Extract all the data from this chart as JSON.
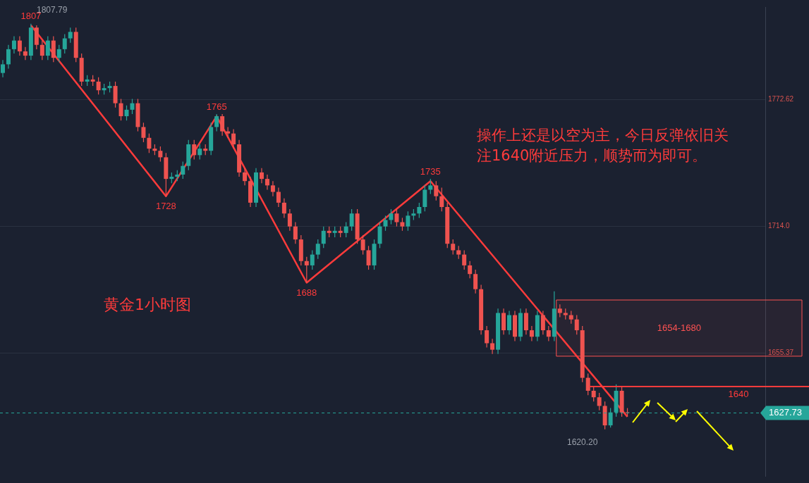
{
  "chart_data": {
    "type": "candlestick",
    "categories": [
      null,
      null,
      null,
      null,
      null,
      null,
      null,
      null,
      null,
      null,
      null,
      null,
      null,
      null,
      null,
      null,
      null,
      null,
      null,
      null,
      null,
      null,
      null,
      null,
      null,
      null,
      null,
      null,
      null,
      null,
      null,
      null,
      null,
      null,
      null,
      null,
      null,
      null,
      null,
      null,
      null,
      null,
      null,
      null,
      null,
      null,
      null,
      null,
      null,
      null,
      null,
      null,
      null,
      null,
      null,
      null,
      null,
      null,
      null,
      null,
      null,
      null,
      null,
      null,
      null,
      null,
      null,
      null,
      null,
      null,
      null,
      null,
      null,
      null,
      null,
      null,
      null,
      null,
      null,
      null,
      null,
      null,
      null,
      null,
      null,
      null,
      null,
      null,
      null,
      null,
      null,
      null,
      null,
      null,
      null,
      null,
      null,
      null,
      null,
      null,
      null,
      null,
      null,
      null,
      null,
      null,
      null,
      null,
      null,
      null,
      null,
      null,
      null,
      null,
      null,
      null,
      null,
      null,
      null,
      null,
      null,
      null,
      null,
      null,
      null,
      null,
      null,
      null,
      null,
      null,
      null,
      null,
      null,
      null,
      null,
      null
    ],
    "ohlc": [
      [
        1785,
        1791,
        1783,
        1789
      ],
      [
        1789,
        1798,
        1787,
        1796
      ],
      [
        1796,
        1802,
        1794,
        1800
      ],
      [
        1800,
        1802,
        1793,
        1795
      ],
      [
        1795,
        1797,
        1791,
        1793
      ],
      [
        1793,
        1807.79,
        1791,
        1806
      ],
      [
        1806,
        1807,
        1796,
        1798
      ],
      [
        1798,
        1800,
        1791,
        1793
      ],
      [
        1793,
        1802,
        1791,
        1800
      ],
      [
        1800,
        1802,
        1790,
        1792
      ],
      [
        1792,
        1798,
        1790,
        1796
      ],
      [
        1796,
        1803,
        1794,
        1801
      ],
      [
        1801,
        1806,
        1799,
        1804
      ],
      [
        1804,
        1806,
        1790,
        1792
      ],
      [
        1792,
        1794,
        1779,
        1781
      ],
      [
        1781,
        1784,
        1779,
        1782
      ],
      [
        1782,
        1784,
        1779,
        1781
      ],
      [
        1781,
        1783,
        1775,
        1777
      ],
      [
        1777,
        1780,
        1775,
        1778
      ],
      [
        1778,
        1781,
        1776,
        1779
      ],
      [
        1779,
        1781,
        1769,
        1771
      ],
      [
        1771,
        1773,
        1763,
        1765
      ],
      [
        1765,
        1770,
        1763,
        1768
      ],
      [
        1768,
        1773,
        1766,
        1771
      ],
      [
        1771,
        1773,
        1758,
        1760
      ],
      [
        1760,
        1762,
        1753,
        1755
      ],
      [
        1755,
        1757,
        1748,
        1750
      ],
      [
        1750,
        1752,
        1747,
        1749
      ],
      [
        1749,
        1751,
        1744,
        1746
      ],
      [
        1746,
        1748,
        1728,
        1736
      ],
      [
        1736,
        1739,
        1734,
        1737
      ],
      [
        1737,
        1740,
        1735,
        1738
      ],
      [
        1738,
        1744,
        1736,
        1742
      ],
      [
        1742,
        1754,
        1740,
        1752
      ],
      [
        1752,
        1754,
        1745,
        1747
      ],
      [
        1747,
        1752,
        1745,
        1750
      ],
      [
        1750,
        1752,
        1747,
        1749
      ],
      [
        1749,
        1762,
        1747,
        1760
      ],
      [
        1760,
        1766,
        1758,
        1765
      ],
      [
        1765,
        1766,
        1756,
        1758
      ],
      [
        1758,
        1760,
        1755,
        1757
      ],
      [
        1757,
        1759,
        1750,
        1752
      ],
      [
        1752,
        1754,
        1737,
        1739
      ],
      [
        1739,
        1741,
        1733,
        1735
      ],
      [
        1735,
        1737,
        1723,
        1725
      ],
      [
        1725,
        1741,
        1723,
        1739
      ],
      [
        1739,
        1741,
        1734,
        1736
      ],
      [
        1736,
        1738,
        1731,
        1733
      ],
      [
        1733,
        1735,
        1728,
        1730
      ],
      [
        1730,
        1732,
        1723,
        1725
      ],
      [
        1725,
        1727,
        1718,
        1720
      ],
      [
        1720,
        1722,
        1712,
        1714
      ],
      [
        1714,
        1716,
        1706,
        1708
      ],
      [
        1708,
        1710,
        1696,
        1698
      ],
      [
        1698,
        1700,
        1688,
        1696
      ],
      [
        1696,
        1703,
        1694,
        1701
      ],
      [
        1701,
        1708,
        1699,
        1706
      ],
      [
        1706,
        1714,
        1704,
        1712
      ],
      [
        1712,
        1714,
        1709,
        1711
      ],
      [
        1711,
        1714,
        1709,
        1712
      ],
      [
        1712,
        1714,
        1709,
        1711
      ],
      [
        1711,
        1716,
        1709,
        1714
      ],
      [
        1714,
        1722,
        1712,
        1720
      ],
      [
        1720,
        1722,
        1706,
        1708
      ],
      [
        1708,
        1710,
        1701,
        1703
      ],
      [
        1703,
        1705,
        1694,
        1696
      ],
      [
        1696,
        1708,
        1694,
        1706
      ],
      [
        1706,
        1716,
        1704,
        1714
      ],
      [
        1714,
        1719,
        1712,
        1717
      ],
      [
        1717,
        1722,
        1715,
        1720
      ],
      [
        1720,
        1722,
        1714,
        1716
      ],
      [
        1716,
        1718,
        1712,
        1714
      ],
      [
        1714,
        1721,
        1712,
        1719
      ],
      [
        1719,
        1722,
        1717,
        1720
      ],
      [
        1720,
        1725,
        1718,
        1723
      ],
      [
        1723,
        1733,
        1721,
        1731
      ],
      [
        1731,
        1736,
        1729,
        1733
      ],
      [
        1733,
        1735,
        1726,
        1728
      ],
      [
        1728,
        1732,
        1721,
        1723
      ],
      [
        1723,
        1725,
        1704,
        1706
      ],
      [
        1706,
        1708,
        1701,
        1703
      ],
      [
        1703,
        1705,
        1699,
        1701
      ],
      [
        1701,
        1703,
        1694,
        1696
      ],
      [
        1696,
        1698,
        1690,
        1692
      ],
      [
        1692,
        1694,
        1683,
        1685
      ],
      [
        1685,
        1687,
        1664,
        1666
      ],
      [
        1666,
        1668,
        1658,
        1660
      ],
      [
        1660,
        1662,
        1655,
        1657
      ],
      [
        1657,
        1676,
        1655,
        1674
      ],
      [
        1674,
        1676,
        1664,
        1666
      ],
      [
        1666,
        1675,
        1664,
        1673
      ],
      [
        1673,
        1675,
        1661,
        1663
      ],
      [
        1663,
        1676,
        1661,
        1674
      ],
      [
        1674,
        1676,
        1664,
        1666
      ],
      [
        1666,
        1668,
        1661,
        1663
      ],
      [
        1663,
        1675,
        1661,
        1673
      ],
      [
        1673,
        1675,
        1664,
        1666
      ],
      [
        1666,
        1668,
        1661,
        1663
      ],
      [
        1663,
        1684,
        1661,
        1676
      ],
      [
        1676,
        1678,
        1672,
        1674
      ],
      [
        1674,
        1676,
        1671,
        1673
      ],
      [
        1673,
        1675,
        1669,
        1671
      ],
      [
        1671,
        1673,
        1664,
        1666
      ],
      [
        1666,
        1668,
        1642,
        1644
      ],
      [
        1644,
        1646,
        1636,
        1638
      ],
      [
        1638,
        1640,
        1633,
        1635
      ],
      [
        1635,
        1637,
        1629,
        1631
      ],
      [
        1631,
        1633,
        1620.2,
        1622
      ],
      [
        1622,
        1630,
        1621,
        1628
      ],
      [
        1628,
        1641,
        1626,
        1638
      ],
      [
        1638,
        1640,
        1626,
        1628
      ],
      [
        1628,
        1630,
        1626,
        1627.73
      ],
      null,
      null,
      null,
      null,
      null,
      null,
      null,
      null,
      null,
      null,
      null,
      null,
      null,
      null,
      null,
      null,
      null,
      null,
      null,
      null,
      null,
      null,
      null,
      null
    ],
    "colors": [
      "#26a69a",
      "#26a69a",
      "#26a69a",
      "#ef5350",
      "#ef5350",
      "#26a69a",
      "#ef5350",
      "#ef5350",
      "#26a69a",
      "#ef5350",
      "#26a69a",
      "#26a69a",
      "#26a69a",
      "#ef5350",
      "#ef5350",
      "#26a69a",
      "#ef5350",
      "#ef5350",
      "#26a69a",
      "#26a69a",
      "#ef5350",
      "#ef5350",
      "#26a69a",
      "#26a69a",
      "#ef5350",
      "#ef5350",
      "#ef5350",
      "#ef5350",
      "#ef5350",
      "#ef5350",
      "#26a69a",
      "#26a69a",
      "#26a69a",
      "#26a69a",
      "#ef5350",
      "#26a69a",
      "#ef5350",
      "#26a69a",
      "#26a69a",
      "#ef5350",
      "#ef5350",
      "#ef5350",
      "#ef5350",
      "#ef5350",
      "#ef5350",
      "#26a69a",
      "#ef5350",
      "#ef5350",
      "#ef5350",
      "#ef5350",
      "#ef5350",
      "#ef5350",
      "#ef5350",
      "#ef5350",
      "#ef5350",
      "#26a69a",
      "#26a69a",
      "#26a69a",
      "#ef5350",
      "#26a69a",
      "#ef5350",
      "#26a69a",
      "#26a69a",
      "#ef5350",
      "#ef5350",
      "#ef5350",
      "#26a69a",
      "#26a69a",
      "#26a69a",
      "#26a69a",
      "#ef5350",
      "#ef5350",
      "#26a69a",
      "#26a69a",
      "#26a69a",
      "#26a69a",
      "#26a69a",
      "#ef5350",
      "#ef5350",
      "#ef5350",
      "#ef5350",
      "#ef5350",
      "#ef5350",
      "#ef5350",
      "#ef5350",
      "#ef5350",
      "#ef5350",
      "#ef5350",
      "#26a69a",
      "#ef5350",
      "#26a69a",
      "#ef5350",
      "#26a69a",
      "#ef5350",
      "#ef5350",
      "#26a69a",
      "#ef5350",
      "#ef5350",
      "#26a69a",
      "#ef5350",
      "#ef5350",
      "#ef5350",
      "#ef5350",
      "#ef5350",
      "#ef5350",
      "#ef5350",
      "#ef5350",
      "#ef5350",
      "#26a69a",
      "#26a69a",
      "#ef5350",
      "#ef5350",
      null,
      null,
      null,
      null,
      null,
      null,
      null,
      null,
      null,
      null,
      null,
      null,
      null,
      null,
      null,
      null,
      null,
      null,
      null,
      null,
      null,
      null,
      null,
      null
    ],
    "series": [
      {
        "type": "line",
        "color": "#ff3b3b",
        "values": [
          null,
          null,
          null,
          null,
          null,
          1807,
          null,
          null,
          null,
          null,
          null,
          null,
          null,
          null,
          null,
          null,
          null,
          null,
          null,
          null,
          null,
          null,
          null,
          null,
          null,
          null,
          null,
          null,
          null,
          1728,
          null,
          null,
          null,
          null,
          null,
          null,
          null,
          null,
          1765,
          null,
          null,
          null,
          null,
          null,
          null,
          null,
          null,
          null,
          null,
          null,
          null,
          null,
          null,
          null,
          1688,
          null,
          null,
          null,
          null,
          null,
          null,
          null,
          null,
          null,
          null,
          null,
          null,
          null,
          null,
          null,
          null,
          null,
          null,
          null,
          null,
          null,
          1735,
          null,
          null,
          null,
          null,
          null,
          null,
          null,
          null,
          null,
          null,
          null,
          null,
          null,
          null,
          null,
          null,
          null,
          null,
          null,
          null,
          null,
          null,
          null,
          null,
          null,
          null,
          null,
          null,
          null,
          null,
          null,
          null,
          null,
          null,
          1626,
          null,
          null,
          null,
          null,
          null,
          null,
          null,
          null,
          null,
          null,
          null,
          null,
          null,
          null,
          null,
          null,
          null,
          null,
          null,
          null,
          null,
          null,
          null,
          null
        ],
        "value_labels": [
          null,
          null,
          null,
          null,
          null,
          "1807",
          null,
          null,
          null,
          null,
          null,
          null,
          null,
          null,
          null,
          null,
          null,
          null,
          null,
          null,
          null,
          null,
          null,
          null,
          null,
          null,
          null,
          null,
          null,
          "1728",
          null,
          null,
          null,
          null,
          null,
          null,
          null,
          null,
          "1765",
          null,
          null,
          null,
          null,
          null,
          null,
          null,
          null,
          null,
          null,
          null,
          null,
          null,
          null,
          null,
          "1688",
          null,
          null,
          null,
          null,
          null,
          null,
          null,
          null,
          null,
          null,
          null,
          null,
          null,
          null,
          null,
          null,
          null,
          null,
          null,
          null,
          null,
          "1735",
          null,
          null,
          null,
          null,
          null,
          null,
          null,
          null,
          null,
          null,
          null,
          null,
          null,
          null,
          null,
          null,
          null,
          null,
          null,
          null,
          null,
          null,
          null,
          null,
          null,
          null,
          null,
          null,
          null,
          null,
          null,
          null,
          null,
          null,
          null,
          null,
          null,
          null,
          null,
          null,
          null,
          null,
          null,
          null,
          null,
          null,
          null,
          null,
          null,
          null,
          null,
          null,
          null,
          null,
          null,
          null,
          null,
          null,
          null
        ]
      }
    ],
    "ylim": [
      1598.6,
      1815.5
    ],
    "yticks": [
      1655.37,
      {
        "value": 1714.0,
        "label": "1714.0"
      },
      1772.62
    ],
    "grid": "y",
    "tick_labels": "y",
    "ref_lines": [
      {
        "axis": "y",
        "value": 1640,
        "label": "1640",
        "color": "#ff3b3b"
      },
      {
        "axis": "y",
        "value": 1627.73,
        "label": "1627.73",
        "color": "#26a69a",
        "line_style": "dashed"
      }
    ],
    "bands": [
      {
        "axis": "y",
        "from": 1654,
        "to": 1680,
        "label": "1654-1680",
        "color": "#ff5252"
      }
    ],
    "annotations": [
      "操作上还是以空为主，今日反弹依旧关注1640附近压力，顺势而为即可。",
      "黄金1小时图",
      "1807.79",
      "1620.20"
    ]
  }
}
